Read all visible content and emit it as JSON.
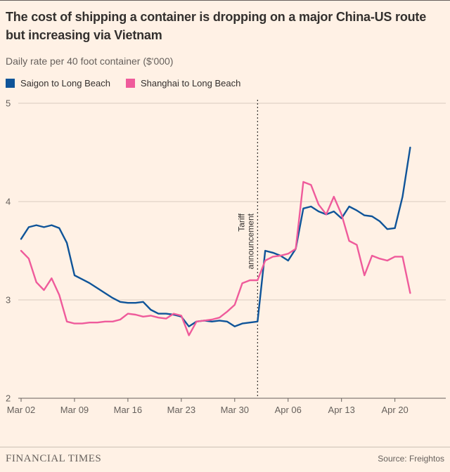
{
  "header": {
    "title": "The cost of shipping a container is dropping on a major China-US route but increasing via Vietnam",
    "subtitle": "Daily rate per 40 foot container ($'000)"
  },
  "annotation": {
    "label": "Tariff announcement",
    "x_index": 31
  },
  "footer": {
    "brand": "FINANCIAL TIMES",
    "source": "Source: Freightos"
  },
  "colors": {
    "background": "#FFF1E5",
    "text": "#33302E",
    "muted": "#66605C",
    "grid": "#D8CCC0",
    "baseline": "#66605C",
    "annotation_line": "#33302E"
  },
  "chart_data": {
    "type": "line",
    "title": "The cost of shipping a container is dropping on a major China-US route but increasing via Vietnam",
    "ylabel": "Daily rate per 40 foot container ($'000)",
    "ylim": [
      2,
      5
    ],
    "y_ticks": [
      2,
      3,
      4,
      5
    ],
    "grid": "horizontal",
    "legend_position": "top",
    "x": [
      "Mar 02",
      "Mar 03",
      "Mar 04",
      "Mar 05",
      "Mar 06",
      "Mar 07",
      "Mar 08",
      "Mar 09",
      "Mar 10",
      "Mar 11",
      "Mar 12",
      "Mar 13",
      "Mar 14",
      "Mar 15",
      "Mar 16",
      "Mar 17",
      "Mar 18",
      "Mar 19",
      "Mar 20",
      "Mar 21",
      "Mar 22",
      "Mar 23",
      "Mar 24",
      "Mar 25",
      "Mar 26",
      "Mar 27",
      "Mar 28",
      "Mar 29",
      "Mar 30",
      "Mar 31",
      "Apr 01",
      "Apr 02",
      "Apr 03",
      "Apr 04",
      "Apr 05",
      "Apr 06",
      "Apr 07",
      "Apr 08",
      "Apr 09",
      "Apr 10",
      "Apr 11",
      "Apr 12",
      "Apr 13",
      "Apr 14",
      "Apr 15",
      "Apr 16",
      "Apr 17",
      "Apr 18",
      "Apr 19",
      "Apr 20",
      "Apr 21",
      "Apr 22"
    ],
    "x_ticks": [
      {
        "label": "Mar 02",
        "index": 0
      },
      {
        "label": "Mar 09",
        "index": 7
      },
      {
        "label": "Mar 16",
        "index": 14
      },
      {
        "label": "Mar 23",
        "index": 21
      },
      {
        "label": "Mar 30",
        "index": 28
      },
      {
        "label": "Apr 06",
        "index": 35
      },
      {
        "label": "Apr 13",
        "index": 42
      },
      {
        "label": "Apr 20",
        "index": 49
      }
    ],
    "series": [
      {
        "name": "Saigon to Long Beach",
        "color": "#0F5499",
        "values": [
          3.62,
          3.74,
          3.76,
          3.74,
          3.76,
          3.73,
          3.58,
          3.25,
          3.21,
          3.17,
          3.12,
          3.07,
          3.02,
          2.98,
          2.97,
          2.97,
          2.98,
          2.9,
          2.86,
          2.86,
          2.85,
          2.83,
          2.73,
          2.78,
          2.79,
          2.78,
          2.79,
          2.78,
          2.73,
          2.76,
          2.77,
          2.78,
          3.5,
          3.48,
          3.45,
          3.4,
          3.52,
          3.93,
          3.95,
          3.9,
          3.87,
          3.9,
          3.83,
          3.95,
          3.91,
          3.86,
          3.85,
          3.8,
          3.72,
          3.73,
          4.05,
          4.55
        ]
      },
      {
        "name": "Shanghai to Long Beach",
        "color": "#EF5B9B",
        "values": [
          3.5,
          3.42,
          3.18,
          3.1,
          3.22,
          3.05,
          2.78,
          2.76,
          2.76,
          2.77,
          2.77,
          2.78,
          2.78,
          2.8,
          2.86,
          2.85,
          2.83,
          2.84,
          2.82,
          2.81,
          2.86,
          2.84,
          2.64,
          2.78,
          2.79,
          2.8,
          2.82,
          2.88,
          2.95,
          3.17,
          3.2,
          3.2,
          3.4,
          3.44,
          3.45,
          3.47,
          3.52,
          4.2,
          4.17,
          3.97,
          3.87,
          4.05,
          3.87,
          3.6,
          3.56,
          3.25,
          3.45,
          3.42,
          3.4,
          3.44,
          3.44,
          3.07
        ]
      }
    ]
  }
}
